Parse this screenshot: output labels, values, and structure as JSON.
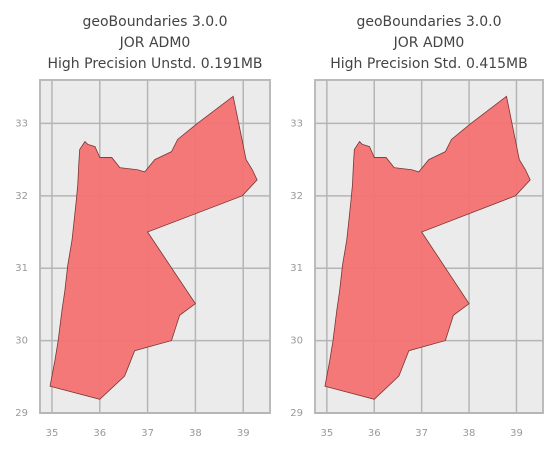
{
  "chart_data": [
    {
      "type": "map",
      "title": [
        "geoBoundaries 3.0.0",
        "JOR ADM0",
        "High Precision Unstd. 0.191MB"
      ],
      "xlim": [
        34.75,
        39.56
      ],
      "ylim": [
        29.0,
        33.6
      ],
      "xticks": [
        35,
        36,
        37,
        38,
        39
      ],
      "yticks": [
        29,
        30,
        31,
        32,
        33
      ],
      "grid": true,
      "series": [
        {
          "color": "#f47272",
          "x": [
            34.96,
            36.0,
            36.52,
            36.73,
            37.5,
            37.67,
            38.0,
            37.0,
            38.98,
            39.29,
            39.19,
            39.06,
            38.79,
            38.04,
            37.63,
            37.5,
            37.15,
            36.94,
            36.79,
            36.42,
            36.25,
            36.0,
            35.9,
            35.75,
            35.69,
            35.58,
            35.56,
            35.54,
            35.5,
            35.42,
            35.33,
            35.27,
            35.21,
            35.13,
            35.06
          ],
          "values": [
            29.37,
            29.19,
            29.51,
            29.86,
            30.0,
            30.35,
            30.51,
            31.5,
            32.0,
            32.22,
            32.36,
            32.5,
            33.375,
            33.0,
            32.78,
            32.61,
            32.5,
            32.33,
            32.36,
            32.39,
            32.53,
            32.53,
            32.68,
            32.71,
            32.75,
            32.64,
            32.43,
            32.15,
            31.88,
            31.39,
            31.04,
            30.69,
            30.42,
            30.0,
            29.72
          ]
        }
      ]
    },
    {
      "type": "map",
      "title": [
        "geoBoundaries 3.0.0",
        "JOR ADM0",
        "High Precision Std. 0.415MB"
      ],
      "xlim": [
        34.75,
        39.56
      ],
      "ylim": [
        29.0,
        33.6
      ],
      "xticks": [
        35,
        36,
        37,
        38,
        39
      ],
      "yticks": [
        29,
        30,
        31,
        32,
        33
      ],
      "grid": true,
      "series": [
        {
          "color": "#f47272",
          "x": [
            34.96,
            36.0,
            36.52,
            36.73,
            37.5,
            37.67,
            38.0,
            37.0,
            38.98,
            39.29,
            39.19,
            39.06,
            38.79,
            38.04,
            37.63,
            37.5,
            37.15,
            36.94,
            36.79,
            36.42,
            36.25,
            36.0,
            35.9,
            35.75,
            35.69,
            35.58,
            35.56,
            35.54,
            35.5,
            35.42,
            35.33,
            35.27,
            35.21,
            35.13,
            35.06
          ],
          "values": [
            29.37,
            29.19,
            29.51,
            29.86,
            30.0,
            30.35,
            30.51,
            31.5,
            32.0,
            32.22,
            32.36,
            32.5,
            33.375,
            33.0,
            32.78,
            32.61,
            32.5,
            32.33,
            32.36,
            32.39,
            32.53,
            32.53,
            32.68,
            32.71,
            32.75,
            32.64,
            32.43,
            32.15,
            31.88,
            31.39,
            31.04,
            30.69,
            30.42,
            30.0,
            29.72
          ]
        }
      ]
    }
  ]
}
